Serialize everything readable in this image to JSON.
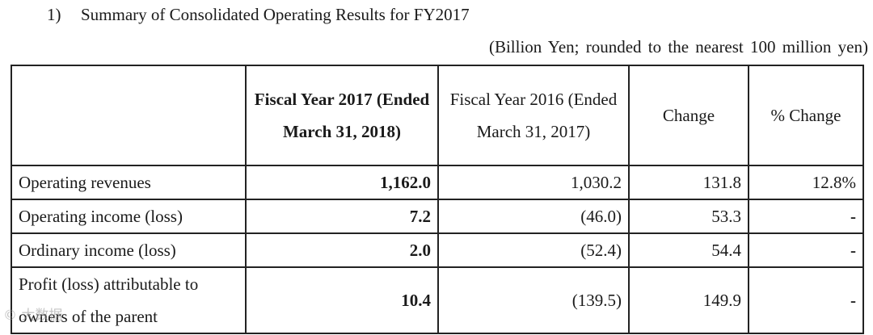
{
  "section": {
    "number": "1)",
    "title": "Summary of Consolidated Operating Results for FY2017"
  },
  "unit_note": "(Billion Yen; rounded to the nearest 100 million yen)",
  "table": {
    "headers": {
      "item": "",
      "fy2017": "Fiscal Year 2017 (Ended March 31, 2018)",
      "fy2016": "Fiscal Year 2016 (Ended March 31, 2017)",
      "change": "Change",
      "pct_change": "% Change"
    },
    "rows": [
      {
        "label": "Operating revenues",
        "fy2017": "1,162.0",
        "fy2016": "1,030.2",
        "change": "131.8",
        "pct_change": "12.8%"
      },
      {
        "label": "Operating income (loss)",
        "fy2017": "7.2",
        "fy2016": "(46.0)",
        "change": "53.3",
        "pct_change": "-"
      },
      {
        "label": "Ordinary income (loss)",
        "fy2017": "2.0",
        "fy2016": "(52.4)",
        "change": "54.4",
        "pct_change": "-"
      },
      {
        "label": "Profit (loss) attributable to owners of the parent",
        "fy2017": "10.4",
        "fy2016": "(139.5)",
        "change": "149.9",
        "pct_change": "-"
      }
    ]
  },
  "watermark": "© 大数据"
}
